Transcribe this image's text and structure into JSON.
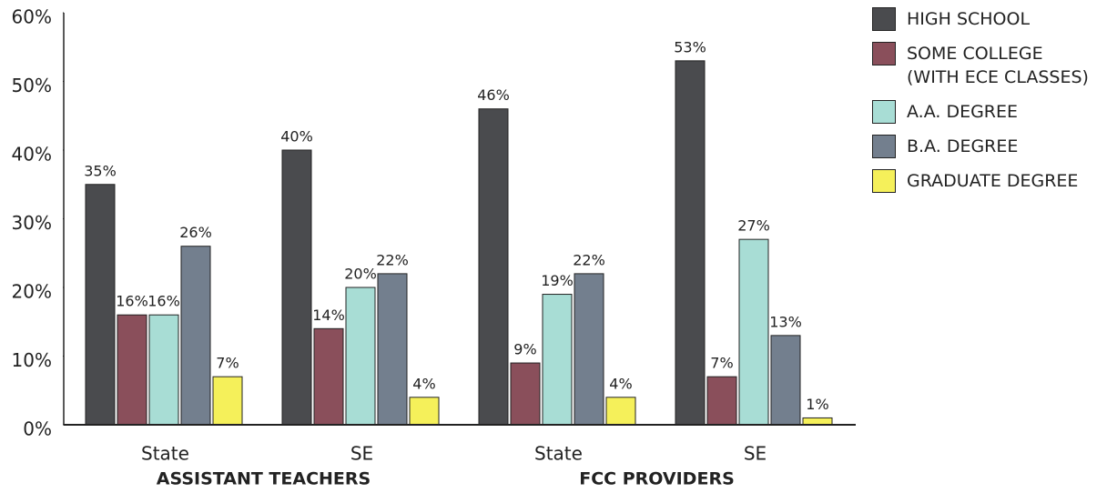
{
  "chart_data": {
    "type": "bar",
    "categories": [
      "State",
      "SE",
      "State",
      "SE"
    ],
    "group_labels": [
      "ASSISTANT TEACHERS",
      "FCC PROVIDERS"
    ],
    "series": [
      {
        "name": "HIGH SCHOOL",
        "color": "#4a4b4e",
        "values": [
          35,
          40,
          46,
          53
        ],
        "value_labels": [
          "35%",
          "40%",
          "46%",
          "53%"
        ]
      },
      {
        "name": "SOME COLLEGE\n(WITH ECE CLASSES)",
        "color": "#8a4f5b",
        "values": [
          16,
          14,
          9,
          7
        ],
        "value_labels": [
          "16%",
          "14%",
          "9%",
          "7%"
        ]
      },
      {
        "name": "A.A. DEGREE",
        "color": "#a8ddd5",
        "values": [
          16,
          20,
          19,
          27
        ],
        "value_labels": [
          "16%",
          "20%",
          "19%",
          "27%"
        ]
      },
      {
        "name": "B.A. DEGREE",
        "color": "#737f8e",
        "values": [
          26,
          22,
          22,
          13
        ],
        "value_labels": [
          "26%",
          "22%",
          "22%",
          "13%"
        ]
      },
      {
        "name": "GRADUATE DEGREE",
        "color": "#f5f05a",
        "values": [
          7,
          4,
          4,
          1
        ],
        "value_labels": [
          "7%",
          "4%",
          "4%",
          "1%"
        ]
      }
    ],
    "ylim": [
      0,
      60
    ],
    "yticks": [
      {
        "value": 0,
        "label": "0%"
      },
      {
        "value": 10,
        "label": "10%"
      },
      {
        "value": 20,
        "label": "20%"
      },
      {
        "value": 30,
        "label": "30%"
      },
      {
        "value": 40,
        "label": "40%"
      },
      {
        "value": 50,
        "label": "50%"
      },
      {
        "value": 60,
        "label": "60%"
      }
    ],
    "legend": "right"
  }
}
